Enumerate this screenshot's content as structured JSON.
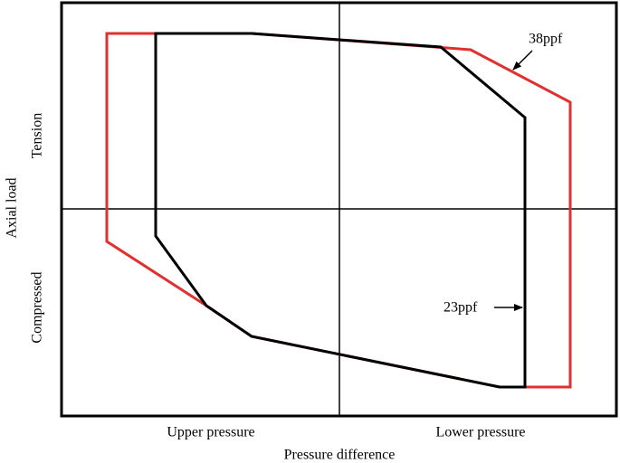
{
  "axis_labels": {
    "x": "Pressure difference",
    "y": "Axial load"
  },
  "x_regions": [
    "Upper pressure",
    "Lower pressure"
  ],
  "y_regions": [
    "Tension",
    "Compressed"
  ],
  "curves": [
    {
      "label": "38ppf"
    },
    {
      "label": "23ppf"
    }
  ]
}
